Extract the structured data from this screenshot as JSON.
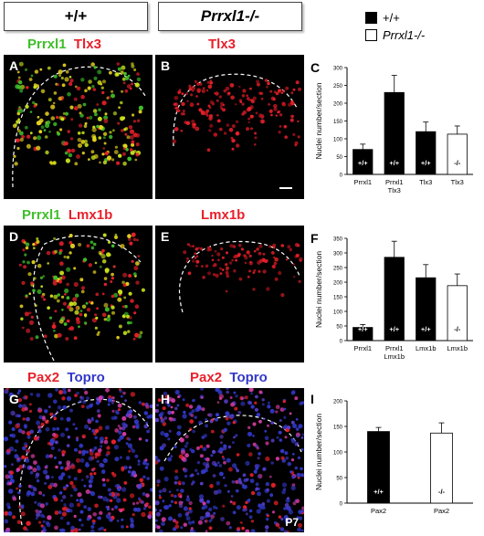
{
  "headers": {
    "wildtype": "+/+",
    "knockout": "Prrxl1-/-"
  },
  "legend": {
    "wt_label": "+/+",
    "ko_label": "Prrxl1-/-",
    "wt_color": "#000000",
    "ko_color": "#ffffff"
  },
  "panels": {
    "A": {
      "letter": "A",
      "stain1": "Prrxl1",
      "stain2": "Tlx3"
    },
    "B": {
      "letter": "B",
      "stain2": "Tlx3"
    },
    "D": {
      "letter": "D",
      "stain1": "Prrxl1",
      "stain2": "Lmx1b"
    },
    "E": {
      "letter": "E",
      "stain2": "Lmx1b"
    },
    "G": {
      "letter": "G",
      "stain1": "Pax2",
      "stain2": "Topro"
    },
    "H": {
      "letter": "H",
      "stain1": "Pax2",
      "stain2": "Topro",
      "age": "P7"
    }
  },
  "colors": {
    "green": "#3fbf2a",
    "red": "#e8202a",
    "blue": "#3238c8",
    "yellow": "#e6d21e"
  },
  "chart_data": [
    {
      "id": "C",
      "letter": "C",
      "type": "bar",
      "ylabel": "Nuclei number/section",
      "ylim": [
        0,
        300
      ],
      "yticks": [
        0,
        50,
        100,
        150,
        200,
        250,
        300
      ],
      "categories": [
        "Prrxl1",
        "Prrxl1\nTlx3",
        "Tlx3",
        "Tlx3"
      ],
      "values": [
        70,
        230,
        120,
        113
      ],
      "errors": [
        15,
        48,
        27,
        23
      ],
      "genotype": [
        "+/+",
        "+/+",
        "+/+",
        "-/-"
      ]
    },
    {
      "id": "F",
      "letter": "F",
      "type": "bar",
      "ylabel": "Nuclei number/section",
      "ylim": [
        0,
        350
      ],
      "yticks": [
        0,
        50,
        100,
        150,
        200,
        250,
        300,
        350
      ],
      "categories": [
        "Prrxl1",
        "Prrxl1\nLmx1b",
        "Lmx1b",
        "Lmx1b"
      ],
      "values": [
        45,
        285,
        215,
        188
      ],
      "errors": [
        10,
        55,
        45,
        40
      ],
      "genotype": [
        "+/+",
        "+/+",
        "+/+",
        "-/-"
      ]
    },
    {
      "id": "I",
      "letter": "I",
      "type": "bar",
      "ylabel": "Nuclei number/section",
      "ylim": [
        0,
        200
      ],
      "yticks": [
        0,
        50,
        100,
        150,
        200
      ],
      "categories": [
        "Pax2",
        "Pax2"
      ],
      "values": [
        140,
        137
      ],
      "errors": [
        8,
        20
      ],
      "genotype": [
        "+/+",
        "-/-"
      ]
    }
  ]
}
